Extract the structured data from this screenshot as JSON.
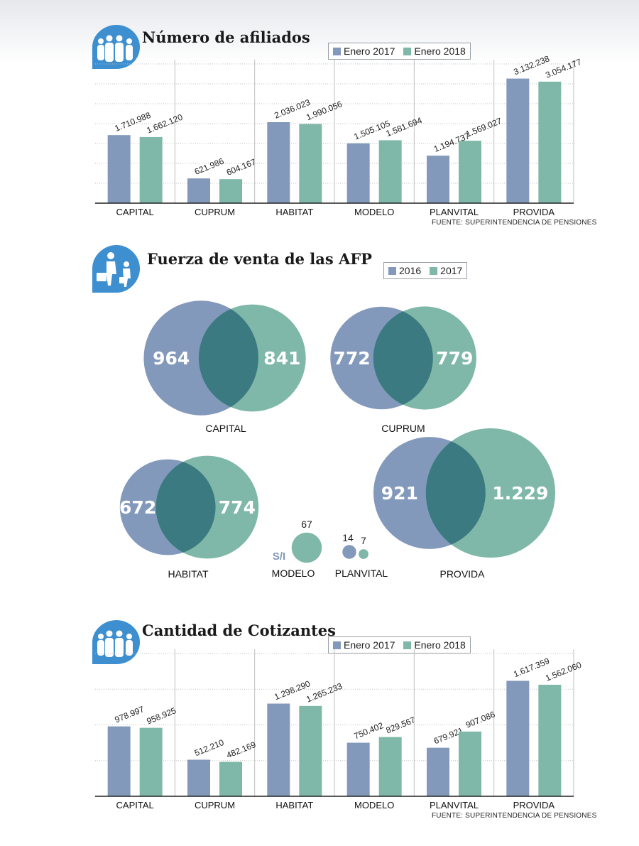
{
  "colors": {
    "blue": "#8399bb",
    "green": "#7fb8a8",
    "overlap": "#3a7a80",
    "icon": "#3d8fd0",
    "grid": "#bfbfbf"
  },
  "charts": {
    "afiliados": {
      "title": "Número de afiliados",
      "legend": [
        "Enero 2017",
        "Enero 2018"
      ],
      "source": "FUENTE: SUPERINTENDENCIA DE PENSIONES"
    },
    "fuerza": {
      "title": "Fuerza de venta de las AFP",
      "legend": [
        "2016",
        "2017"
      ]
    },
    "cotizantes": {
      "title": "Cantidad de Cotizantes",
      "legend": [
        "Enero 2017",
        "Enero 2018"
      ],
      "source": "FUENTE: SUPERINTENDENCIA DE PENSIONES"
    }
  },
  "chart_data": [
    {
      "type": "bar",
      "title": "Número de afiliados",
      "categories": [
        "CAPITAL",
        "CUPRUM",
        "HABITAT",
        "MODELO",
        "PLANVITAL",
        "PROVIDA"
      ],
      "series": [
        {
          "name": "Enero 2017",
          "values": [
            1710988,
            621986,
            2036023,
            1505105,
            1194737,
            3132238
          ],
          "labels": [
            "1.710.988",
            "621.986",
            "2.036.023",
            "1.505.105",
            "1.194.737",
            "3.132.238"
          ]
        },
        {
          "name": "Enero 2018",
          "values": [
            1662120,
            604167,
            1990056,
            1581694,
            1569027,
            3054177
          ],
          "labels": [
            "1.662.120",
            "604.167",
            "1.990.056",
            "1.581.694",
            "1.569.027",
            "3.054.177"
          ]
        }
      ],
      "ylim": [
        0,
        3500000
      ],
      "grid": true,
      "legend_position": "top-right"
    },
    {
      "type": "venn",
      "title": "Fuerza de venta de las AFP",
      "series_names": [
        "2016",
        "2017"
      ],
      "items": [
        {
          "category": "CAPITAL",
          "v2016": 964,
          "v2017": 841,
          "label2016": "964",
          "label2017": "841"
        },
        {
          "category": "CUPRUM",
          "v2016": 772,
          "v2017": 779,
          "label2016": "772",
          "label2017": "779"
        },
        {
          "category": "HABITAT",
          "v2016": 672,
          "v2017": 774,
          "label2016": "672",
          "label2017": "774"
        },
        {
          "category": "MODELO",
          "v2016": null,
          "v2017": 67,
          "label2016": "S/I",
          "label2017": "67"
        },
        {
          "category": "PLANVITAL",
          "v2016": 14,
          "v2017": 7,
          "label2016": "14",
          "label2017": "7"
        },
        {
          "category": "PROVIDA",
          "v2016": 921,
          "v2017": 1229,
          "label2016": "921",
          "label2017": "1.229"
        }
      ]
    },
    {
      "type": "bar",
      "title": "Cantidad de Cotizantes",
      "categories": [
        "CAPITAL",
        "CUPRUM",
        "HABITAT",
        "MODELO",
        "PLANVITAL",
        "PROVIDA"
      ],
      "series": [
        {
          "name": "Enero 2017",
          "values": [
            978997,
            512210,
            1298290,
            750402,
            679921,
            1617359
          ],
          "labels": [
            "978.997",
            "512.210",
            "1.298.290",
            "750.402",
            "679.921",
            "1.617.359"
          ]
        },
        {
          "name": "Enero 2018",
          "values": [
            958925,
            482169,
            1265233,
            829567,
            907086,
            1562060
          ],
          "labels": [
            "958.925",
            "482.169",
            "1.265.233",
            "829.567",
            "907.086",
            "1.562.060"
          ]
        }
      ],
      "ylim": [
        0,
        2000000
      ],
      "grid": true,
      "legend_position": "top-right"
    }
  ]
}
